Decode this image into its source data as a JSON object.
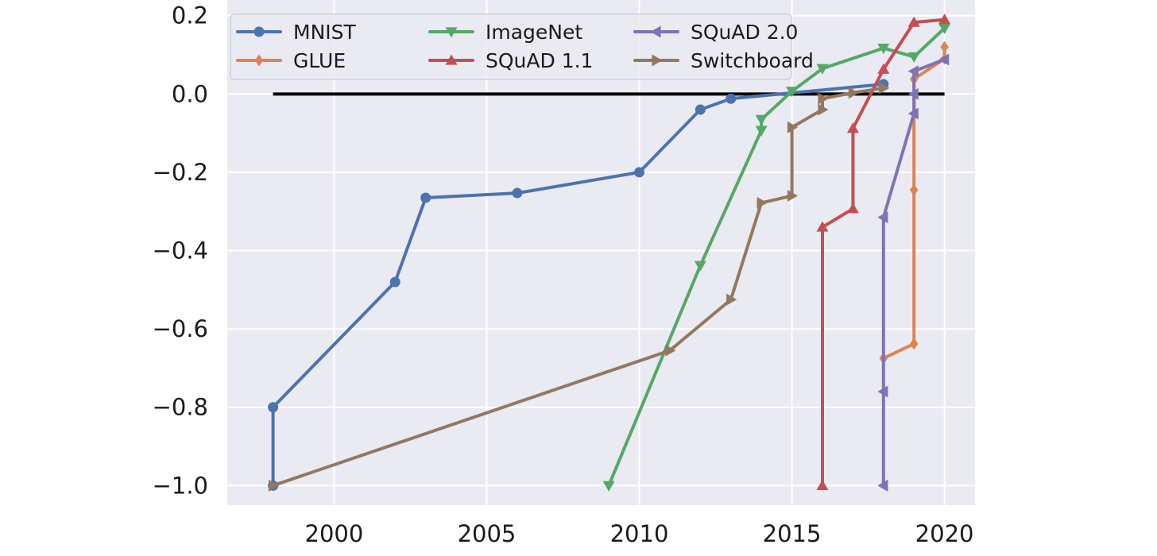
{
  "chart_data": {
    "type": "line",
    "title": "",
    "xlabel": "",
    "ylabel": "",
    "xlim": [
      1996.5,
      2021.0
    ],
    "ylim": [
      -1.05,
      0.24
    ],
    "x_ticks": [
      2000,
      2005,
      2010,
      2015,
      2020
    ],
    "y_ticks": [
      -1.0,
      -0.8,
      -0.6,
      -0.4,
      -0.2,
      0.0,
      0.2
    ],
    "x_tick_labels": [
      "2000",
      "2005",
      "2010",
      "2015",
      "2020"
    ],
    "y_tick_labels": [
      "−1.0",
      "−0.8",
      "−0.6",
      "−0.4",
      "−0.2",
      "0.0",
      "0.2"
    ],
    "grid": true,
    "legend_position": "top-left",
    "background": "#eaeaf2",
    "reference_line": {
      "y": 0.0,
      "x_range": [
        1998,
        2020
      ],
      "color": "#000000"
    },
    "series": [
      {
        "name": "MNIST",
        "color": "#4c72b0",
        "marker": "circle",
        "points": [
          [
            1998,
            -1.0
          ],
          [
            1998,
            -0.8
          ],
          [
            2002,
            -0.48
          ],
          [
            2003,
            -0.265
          ],
          [
            2006,
            -0.253
          ],
          [
            2010,
            -0.2
          ],
          [
            2012,
            -0.04
          ],
          [
            2013,
            -0.012
          ],
          [
            2018,
            0.025
          ]
        ]
      },
      {
        "name": "GLUE",
        "color": "#dd8452",
        "marker": "diamond",
        "points": [
          [
            2018,
            -0.675
          ],
          [
            2019,
            -0.638
          ],
          [
            2019,
            -0.245
          ],
          [
            2019,
            0.038
          ],
          [
            2020,
            0.09
          ],
          [
            2020,
            0.12
          ]
        ]
      },
      {
        "name": "ImageNet",
        "color": "#55a868",
        "marker": "triangle-down",
        "points": [
          [
            2009,
            -1.0
          ],
          [
            2012,
            -0.438
          ],
          [
            2014,
            -0.093
          ],
          [
            2014,
            -0.065
          ],
          [
            2015,
            0.007
          ],
          [
            2016,
            0.065
          ],
          [
            2018,
            0.117
          ],
          [
            2019,
            0.095
          ],
          [
            2020,
            0.168
          ]
        ]
      },
      {
        "name": "SQuAD 1.1",
        "color": "#c44e52",
        "marker": "triangle-up",
        "points": [
          [
            2016,
            -1.0
          ],
          [
            2016,
            -0.34
          ],
          [
            2017,
            -0.293
          ],
          [
            2017,
            -0.088
          ],
          [
            2018,
            0.063
          ],
          [
            2019,
            0.183
          ],
          [
            2020,
            0.19
          ]
        ]
      },
      {
        "name": "SQuAD 2.0",
        "color": "#8172b3",
        "marker": "triangle-left",
        "points": [
          [
            2018,
            -1.0
          ],
          [
            2018,
            -0.76
          ],
          [
            2018,
            -0.315
          ],
          [
            2019,
            -0.05
          ],
          [
            2019,
            0.0
          ],
          [
            2019,
            0.058
          ],
          [
            2020,
            0.088
          ]
        ]
      },
      {
        "name": "Switchboard",
        "color": "#937860",
        "marker": "triangle-right",
        "points": [
          [
            1998,
            -1.0
          ],
          [
            2011,
            -0.655
          ],
          [
            2013,
            -0.525
          ],
          [
            2014,
            -0.278
          ],
          [
            2015,
            -0.26
          ],
          [
            2015,
            -0.085
          ],
          [
            2016,
            -0.04
          ],
          [
            2016,
            -0.012
          ],
          [
            2017,
            0.003
          ],
          [
            2018,
            0.015
          ]
        ]
      }
    ]
  }
}
